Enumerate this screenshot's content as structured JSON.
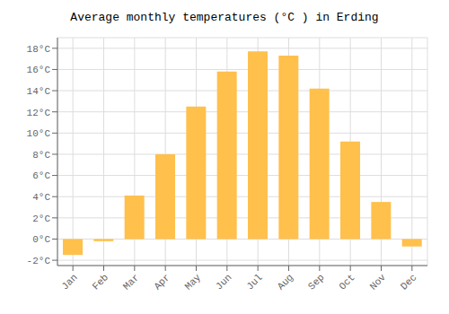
{
  "chart_data": {
    "type": "bar",
    "title": "Average monthly temperatures (°C ) in Erding",
    "categories": [
      "Jan",
      "Feb",
      "Mar",
      "Apr",
      "May",
      "Jun",
      "Jul",
      "Aug",
      "Sep",
      "Oct",
      "Nov",
      "Dec"
    ],
    "values": [
      -1.5,
      -0.2,
      4.1,
      8.0,
      12.5,
      15.8,
      17.7,
      17.3,
      14.2,
      9.2,
      3.5,
      -0.7
    ],
    "color": "#FFC04C",
    "ylim": [
      -2.5,
      19.0
    ],
    "yticks": [
      {
        "value": -2,
        "label": "-2°C"
      },
      {
        "value": 0,
        "label": "0°C"
      },
      {
        "value": 2,
        "label": "2°C"
      },
      {
        "value": 4,
        "label": "4°C"
      },
      {
        "value": 6,
        "label": "6°C"
      },
      {
        "value": 8,
        "label": "8°C"
      },
      {
        "value": 10,
        "label": "10°C"
      },
      {
        "value": 12,
        "label": "12°C"
      },
      {
        "value": 14,
        "label": "14°C"
      },
      {
        "value": 16,
        "label": "16°C"
      },
      {
        "value": 18,
        "label": "18°C"
      }
    ],
    "grid": true
  }
}
